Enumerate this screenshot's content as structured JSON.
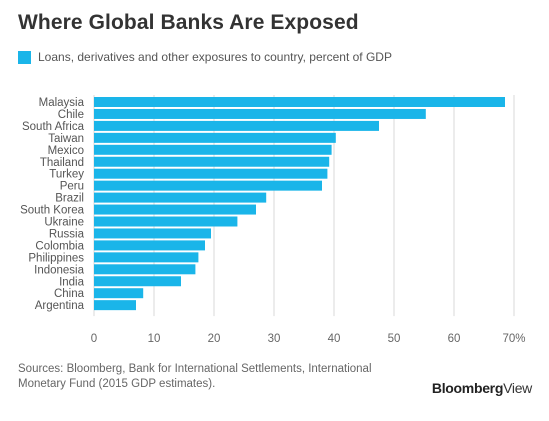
{
  "header": {
    "title": "Where Global Banks Are Exposed"
  },
  "legend": {
    "label": "Loans, derivatives and other exposures to country, percent of GDP",
    "color": "#1ab5e9"
  },
  "footer": {
    "source": "Sources: Bloomberg, Bank for International Settlements, International Monetary Fund (2015 GDP estimates).",
    "brand_bold": "Bloomberg",
    "brand_light": "View"
  },
  "chart_data": {
    "type": "bar",
    "orientation": "horizontal",
    "title": "Where Global Banks Are Exposed",
    "xlabel": "",
    "ylabel": "",
    "categories": [
      "Malaysia",
      "Chile",
      "South Africa",
      "Taiwan",
      "Mexico",
      "Thailand",
      "Turkey",
      "Peru",
      "Brazil",
      "South Korea",
      "Ukraine",
      "Russia",
      "Colombia",
      "Philippines",
      "Indonesia",
      "India",
      "China",
      "Argentina"
    ],
    "series": [
      {
        "name": "Loans, derivatives and other exposures to country, percent of GDP",
        "values": [
          68.5,
          55.3,
          47.5,
          40.3,
          39.6,
          39.2,
          38.9,
          38.0,
          28.7,
          27.0,
          23.9,
          19.5,
          18.5,
          17.4,
          16.9,
          14.5,
          8.2,
          7.0
        ],
        "color": "#1ab5e9"
      }
    ],
    "xlim": [
      0,
      70
    ],
    "xticks": [
      0,
      10,
      20,
      30,
      40,
      50,
      60,
      70
    ],
    "xtick_labels": [
      "0",
      "10",
      "20",
      "30",
      "40",
      "50",
      "60",
      "70%"
    ],
    "grid": true
  }
}
